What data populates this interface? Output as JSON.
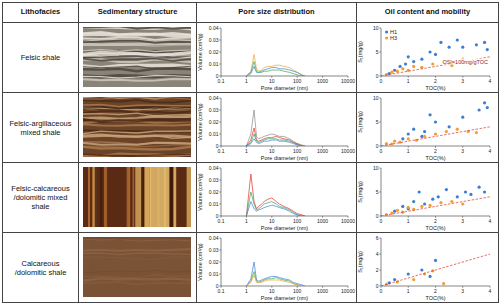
{
  "table": {
    "headers": [
      "Lithofacies",
      "Sedimentary structure",
      "Pore size distribution",
      "Oil content and mobility"
    ],
    "rows": [
      "Felsic shale",
      "Felsic-argillaceous mixed shale",
      "Felsic-calcareous /dolomitic mixed shale",
      "Calcareous /dolomitic shale"
    ]
  },
  "chart_data": [
    {
      "type": "line",
      "x_label": "Pore diameter (nm)",
      "y_label": "Volume (cm³/g)",
      "log": "x",
      "xlim": [
        0.1,
        10000
      ],
      "xticks": [
        0.1,
        1,
        10,
        100,
        1000,
        10000
      ],
      "ylim": [
        0,
        0.04
      ],
      "yticks": [
        0,
        0.01,
        0.02,
        0.03,
        0.04
      ],
      "x": [
        1,
        1.5,
        2,
        2.5,
        3,
        4,
        5,
        7,
        10,
        15,
        20,
        30,
        50,
        70,
        100,
        150,
        200
      ],
      "series": [
        {
          "color": "#f0a030",
          "values": [
            0,
            0.004,
            0.018,
            0.006,
            0.004,
            0.005,
            0.007,
            0.008,
            0.008,
            0.009,
            0.009,
            0.008,
            0.007,
            0.005,
            0.003,
            0.001,
            0
          ]
        },
        {
          "color": "#3a7fd5",
          "values": [
            0,
            0.002,
            0.008,
            0.003,
            0.003,
            0.004,
            0.005,
            0.006,
            0.007,
            0.007,
            0.006,
            0.006,
            0.005,
            0.004,
            0.003,
            0.001,
            0
          ]
        },
        {
          "color": "#3aa35a",
          "values": [
            0,
            0.003,
            0.012,
            0.004,
            0.003,
            0.003,
            0.004,
            0.004,
            0.005,
            0.005,
            0.005,
            0.004,
            0.003,
            0.002,
            0.001,
            0,
            0
          ]
        }
      ]
    },
    {
      "type": "scatter",
      "x_label": "TOC(%)",
      "y_label": "S₁(mg/g)",
      "xlim": [
        0,
        4
      ],
      "xticks": [
        0,
        1,
        2,
        3,
        4
      ],
      "ylim": [
        0,
        10
      ],
      "yticks": [
        0,
        5,
        10
      ],
      "legend": "top-left",
      "annotation": "OSI=100mg/gTOC",
      "series": [
        {
          "name": "H1",
          "color": "#3a7fd5",
          "marker": "circle",
          "x": [
            0.3,
            0.5,
            0.7,
            0.9,
            1.0,
            1.2,
            1.5,
            1.8,
            2.0,
            2.2,
            2.5,
            2.8,
            3.0,
            3.5,
            3.8,
            3.9
          ],
          "values": [
            0.5,
            1.2,
            2,
            2.5,
            4,
            3,
            3.5,
            5,
            4.5,
            7,
            6,
            7.5,
            6,
            6.5,
            7,
            5.5
          ]
        },
        {
          "name": "H3",
          "color": "#f0a030",
          "marker": "circle",
          "x": [
            0.2,
            0.4,
            0.6,
            0.8,
            1.0,
            1.2,
            1.5,
            1.9,
            2.3,
            2.6,
            3.0
          ],
          "values": [
            0.3,
            0.8,
            1,
            1.5,
            1.2,
            2,
            1.8,
            2.5,
            3,
            2.2,
            3.5
          ]
        },
        {
          "type": "line",
          "color": "#e0302a",
          "line_style": "dashed",
          "x": [
            0,
            4
          ],
          "values": [
            0,
            4
          ]
        }
      ]
    },
    {
      "type": "line",
      "x_label": "Pore diameter (nm)",
      "y_label": "Volume (cm³/g)",
      "log": "x",
      "xlim": [
        0.1,
        10000
      ],
      "xticks": [
        0.1,
        1,
        10,
        100,
        1000,
        10000
      ],
      "ylim": [
        0,
        0.04
      ],
      "yticks": [
        0,
        0.01,
        0.02,
        0.03,
        0.04
      ],
      "x": [
        1,
        1.5,
        2,
        2.5,
        3,
        4,
        5,
        7,
        10,
        15,
        20,
        30,
        50,
        70,
        100,
        150,
        200
      ],
      "series": [
        {
          "color": "#888888",
          "values": [
            0,
            0.01,
            0.03,
            0.008,
            0.006,
            0.007,
            0.008,
            0.009,
            0.01,
            0.009,
            0.008,
            0.008,
            0.006,
            0.004,
            0.002,
            0.001,
            0
          ]
        },
        {
          "color": "#e0302a",
          "values": [
            0,
            0.005,
            0.015,
            0.005,
            0.004,
            0.005,
            0.006,
            0.007,
            0.007,
            0.008,
            0.007,
            0.006,
            0.005,
            0.003,
            0.002,
            0,
            0
          ]
        },
        {
          "color": "#3aa35a",
          "values": [
            0,
            0.003,
            0.01,
            0.004,
            0.003,
            0.004,
            0.005,
            0.006,
            0.006,
            0.006,
            0.005,
            0.005,
            0.004,
            0.003,
            0.001,
            0,
            0
          ]
        },
        {
          "color": "#3a7fd5",
          "values": [
            0,
            0.002,
            0.006,
            0.003,
            0.002,
            0.003,
            0.004,
            0.004,
            0.005,
            0.005,
            0.004,
            0.004,
            0.003,
            0.002,
            0.001,
            0,
            0
          ]
        }
      ]
    },
    {
      "type": "scatter",
      "x_label": "TOC(%)",
      "y_label": "S₁(mg/g)",
      "xlim": [
        0,
        4
      ],
      "xticks": [
        0,
        1,
        2,
        3,
        4
      ],
      "ylim": [
        0,
        10
      ],
      "yticks": [
        0,
        5,
        10
      ],
      "series": [
        {
          "color": "#3a7fd5",
          "marker": "circle",
          "x": [
            0.8,
            1.0,
            1.2,
            1.5,
            1.6,
            1.8,
            2.0,
            2.5,
            3.0,
            3.6,
            3.8,
            3.9
          ],
          "values": [
            1.5,
            2.5,
            3.5,
            2,
            3,
            6.5,
            5,
            4,
            6,
            7.5,
            9,
            8
          ]
        },
        {
          "color": "#f0a030",
          "marker": "circle",
          "x": [
            0.2,
            0.4,
            0.5,
            0.7,
            1.0,
            1.3,
            1.6,
            2.0,
            2.4,
            2.8,
            3.2,
            3.5
          ],
          "values": [
            0.5,
            0.4,
            1,
            0.8,
            1.5,
            1.2,
            2,
            2.5,
            3,
            3.5,
            3,
            2.8
          ]
        },
        {
          "type": "line",
          "color": "#e0302a",
          "line_style": "dashed",
          "x": [
            0,
            4
          ],
          "values": [
            0,
            4
          ]
        }
      ]
    },
    {
      "type": "line",
      "x_label": "Pore diameter (nm)",
      "y_label": "Volume (cm³/g)",
      "log": "x",
      "xlim": [
        0.1,
        10000
      ],
      "xticks": [
        0.1,
        1,
        10,
        100,
        1000,
        10000
      ],
      "ylim": [
        0,
        0.04
      ],
      "yticks": [
        0,
        0.01,
        0.02,
        0.03,
        0.04
      ],
      "x": [
        1,
        1.5,
        2,
        2.5,
        3,
        4,
        5,
        7,
        10,
        15,
        20,
        30,
        50,
        70,
        100,
        150,
        200
      ],
      "series": [
        {
          "color": "#e0302a",
          "values": [
            0,
            0.035,
            0.012,
            0.006,
            0.008,
            0.01,
            0.012,
            0.014,
            0.015,
            0.012,
            0.01,
            0.008,
            0.006,
            0.004,
            0.002,
            0.001,
            0
          ]
        },
        {
          "color": "#3aa35a",
          "values": [
            0,
            0.02,
            0.01,
            0.005,
            0.006,
            0.008,
            0.01,
            0.011,
            0.012,
            0.01,
            0.008,
            0.007,
            0.005,
            0.003,
            0.001,
            0,
            0
          ]
        },
        {
          "color": "#3a7fd5",
          "values": [
            0,
            0.012,
            0.006,
            0.004,
            0.005,
            0.006,
            0.007,
            0.008,
            0.009,
            0.008,
            0.007,
            0.006,
            0.004,
            0.002,
            0.001,
            0,
            0
          ]
        }
      ]
    },
    {
      "type": "scatter",
      "x_label": "TOC(%)",
      "y_label": "S₁(mg/g)",
      "xlim": [
        0,
        4
      ],
      "xticks": [
        0,
        1,
        2,
        3,
        4
      ],
      "ylim": [
        0,
        10
      ],
      "yticks": [
        0,
        5,
        10
      ],
      "series": [
        {
          "color": "#3a7fd5",
          "marker": "circle",
          "x": [
            0.5,
            0.8,
            1.0,
            1.2,
            1.4,
            1.6,
            1.9,
            2.1,
            2.4,
            2.8,
            3.1,
            3.3,
            3.6,
            3.8
          ],
          "values": [
            1,
            2,
            1.5,
            3,
            5,
            2.5,
            3.5,
            4,
            5.5,
            4,
            5,
            4.5,
            6,
            5
          ]
        },
        {
          "color": "#f0a030",
          "marker": "circle",
          "x": [
            0.2,
            0.4,
            0.6,
            0.8,
            1.0,
            1.2,
            1.5,
            1.8,
            2.2,
            2.6,
            3.0
          ],
          "values": [
            0.3,
            0.6,
            1.2,
            0.8,
            1.8,
            1.4,
            2,
            2.2,
            2.8,
            3,
            2.5
          ]
        },
        {
          "type": "line",
          "color": "#e0302a",
          "line_style": "dashed",
          "x": [
            0,
            4
          ],
          "values": [
            0,
            4
          ]
        }
      ]
    },
    {
      "type": "line",
      "x_label": "Pore diameter (nm)",
      "y_label": "Volume (cm³/g)",
      "log": "x",
      "xlim": [
        0.1,
        10000
      ],
      "xticks": [
        0.1,
        1,
        10,
        100,
        1000,
        10000
      ],
      "ylim": [
        0,
        0.04
      ],
      "yticks": [
        0,
        0.01,
        0.02,
        0.03,
        0.04
      ],
      "x": [
        1,
        1.5,
        2,
        2.5,
        3,
        4,
        5,
        7,
        10,
        15,
        20,
        30,
        50,
        70,
        100,
        150,
        200
      ],
      "series": [
        {
          "color": "#3a7fd5",
          "values": [
            0,
            0.006,
            0.02,
            0.005,
            0.004,
            0.005,
            0.006,
            0.007,
            0.008,
            0.008,
            0.007,
            0.006,
            0.005,
            0.003,
            0.002,
            0.001,
            0
          ]
        },
        {
          "color": "#3aa35a",
          "values": [
            0,
            0.004,
            0.012,
            0.004,
            0.003,
            0.004,
            0.005,
            0.006,
            0.006,
            0.007,
            0.006,
            0.005,
            0.004,
            0.002,
            0.001,
            0,
            0
          ]
        },
        {
          "color": "#f0a030",
          "values": [
            0,
            0.003,
            0.009,
            0.003,
            0.003,
            0.003,
            0.004,
            0.005,
            0.005,
            0.005,
            0.005,
            0.004,
            0.003,
            0.002,
            0.001,
            0,
            0
          ]
        }
      ]
    },
    {
      "type": "scatter",
      "x_label": "TOC(%)",
      "y_label": "S₁(mg/g)",
      "xlim": [
        0,
        4
      ],
      "xticks": [
        0,
        1,
        2,
        3,
        4
      ],
      "ylim": [
        0,
        6
      ],
      "yticks": [
        0,
        2,
        4,
        6
      ],
      "series": [
        {
          "color": "#3a7fd5",
          "marker": "circle",
          "x": [
            0.3,
            0.5,
            1.0,
            1.5,
            1.8,
            2.0
          ],
          "values": [
            0.4,
            0.8,
            1.5,
            2,
            1.2,
            3.2
          ]
        },
        {
          "color": "#f0a030",
          "marker": "circle",
          "x": [
            0.2,
            0.6,
            1.2,
            1.6,
            1.9,
            2.3
          ],
          "values": [
            0.2,
            0.5,
            0.8,
            1.5,
            1.9,
            0.3
          ]
        },
        {
          "type": "line",
          "color": "#e0302a",
          "line_style": "dashed",
          "x": [
            0,
            4
          ],
          "values": [
            0,
            4
          ]
        }
      ]
    }
  ]
}
